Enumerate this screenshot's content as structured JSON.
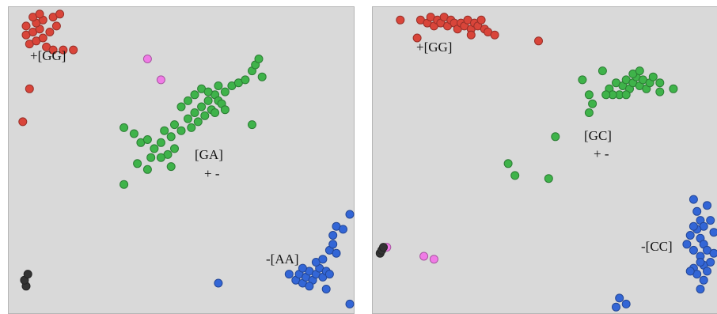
{
  "colors": {
    "GG": "#d9453a",
    "AA": "#3366d6",
    "CC": "#3366d6",
    "GA": "#3fb34a",
    "GC": "#3fb34a",
    "magenta": "#f07be6",
    "black": "#333333",
    "panel_background": "#d9d9d9"
  },
  "panels": [
    {
      "labels": {
        "GG": "+[GG]",
        "GA": "[GA]",
        "GA_sign": "+ -",
        "AA": "-[AA]"
      }
    },
    {
      "labels": {
        "GG": "+[GG]",
        "GC": "[GC]",
        "GC_sign": "+ -",
        "CC": "-[CC]"
      }
    }
  ],
  "chart_data": [
    {
      "type": "scatter",
      "xlim": [
        0,
        1
      ],
      "ylim": [
        0,
        1
      ],
      "grid": false,
      "series": [
        {
          "cluster": "GG",
          "color_key": "GG",
          "points": [
            [
              0.04,
              0.92
            ],
            [
              0.06,
              0.93
            ],
            [
              0.08,
              0.94
            ],
            [
              0.05,
              0.89
            ],
            [
              0.07,
              0.9
            ],
            [
              0.09,
              0.91
            ],
            [
              0.1,
              0.88
            ],
            [
              0.12,
              0.87
            ],
            [
              0.15,
              0.87
            ],
            [
              0.18,
              0.87
            ],
            [
              0.11,
              0.93
            ],
            [
              0.13,
              0.95
            ],
            [
              0.07,
              0.96
            ],
            [
              0.09,
              0.97
            ],
            [
              0.04,
              0.95
            ],
            [
              0.06,
              0.98
            ],
            [
              0.12,
              0.98
            ],
            [
              0.08,
              0.99
            ],
            [
              0.14,
              0.99
            ],
            [
              0.05,
              0.74
            ],
            [
              0.03,
              0.63
            ]
          ]
        },
        {
          "cluster": "GA",
          "color_key": "GA",
          "points": [
            [
              0.33,
              0.61
            ],
            [
              0.36,
              0.59
            ],
            [
              0.38,
              0.56
            ],
            [
              0.4,
              0.57
            ],
            [
              0.42,
              0.54
            ],
            [
              0.44,
              0.56
            ],
            [
              0.45,
              0.6
            ],
            [
              0.47,
              0.58
            ],
            [
              0.48,
              0.62
            ],
            [
              0.5,
              0.6
            ],
            [
              0.52,
              0.64
            ],
            [
              0.53,
              0.61
            ],
            [
              0.54,
              0.66
            ],
            [
              0.55,
              0.63
            ],
            [
              0.56,
              0.68
            ],
            [
              0.57,
              0.65
            ],
            [
              0.58,
              0.7
            ],
            [
              0.59,
              0.67
            ],
            [
              0.6,
              0.72
            ],
            [
              0.61,
              0.7
            ],
            [
              0.62,
              0.69
            ],
            [
              0.5,
              0.68
            ],
            [
              0.52,
              0.7
            ],
            [
              0.54,
              0.72
            ],
            [
              0.56,
              0.74
            ],
            [
              0.58,
              0.73
            ],
            [
              0.6,
              0.66
            ],
            [
              0.63,
              0.73
            ],
            [
              0.65,
              0.75
            ],
            [
              0.67,
              0.76
            ],
            [
              0.69,
              0.77
            ],
            [
              0.71,
              0.8
            ],
            [
              0.72,
              0.82
            ],
            [
              0.73,
              0.84
            ],
            [
              0.74,
              0.78
            ],
            [
              0.71,
              0.62
            ],
            [
              0.63,
              0.67
            ],
            [
              0.61,
              0.75
            ],
            [
              0.48,
              0.54
            ],
            [
              0.46,
              0.52
            ],
            [
              0.33,
              0.42
            ],
            [
              0.37,
              0.49
            ],
            [
              0.41,
              0.51
            ],
            [
              0.44,
              0.51
            ],
            [
              0.47,
              0.48
            ],
            [
              0.4,
              0.47
            ]
          ]
        },
        {
          "cluster": "AA",
          "color_key": "AA",
          "points": [
            [
              0.82,
              0.12
            ],
            [
              0.84,
              0.1
            ],
            [
              0.85,
              0.12
            ],
            [
              0.86,
              0.09
            ],
            [
              0.87,
              0.11
            ],
            [
              0.88,
              0.13
            ],
            [
              0.89,
              0.1
            ],
            [
              0.9,
              0.12
            ],
            [
              0.91,
              0.14
            ],
            [
              0.92,
              0.11
            ],
            [
              0.93,
              0.13
            ],
            [
              0.94,
              0.12
            ],
            [
              0.88,
              0.08
            ],
            [
              0.86,
              0.14
            ],
            [
              0.9,
              0.16
            ],
            [
              0.92,
              0.17
            ],
            [
              0.94,
              0.2
            ],
            [
              0.95,
              0.22
            ],
            [
              0.96,
              0.19
            ],
            [
              0.95,
              0.25
            ],
            [
              0.96,
              0.28
            ],
            [
              0.98,
              0.27
            ],
            [
              1.0,
              0.32
            ],
            [
              0.93,
              0.07
            ],
            [
              1.01,
              0.02
            ],
            [
              0.61,
              0.09
            ]
          ]
        },
        {
          "cluster": "magenta",
          "color_key": "magenta",
          "points": [
            [
              0.4,
              0.84
            ],
            [
              0.44,
              0.77
            ]
          ]
        },
        {
          "cluster": "black",
          "color_key": "black",
          "points": [
            [
              0.04,
              0.08
            ],
            [
              0.035,
              0.1
            ],
            [
              0.045,
              0.12
            ]
          ]
        }
      ]
    },
    {
      "type": "scatter",
      "xlim": [
        0,
        1
      ],
      "ylim": [
        0,
        1
      ],
      "grid": false,
      "series": [
        {
          "cluster": "GG",
          "color_key": "GG",
          "points": [
            [
              0.07,
              0.97
            ],
            [
              0.13,
              0.97
            ],
            [
              0.15,
              0.96
            ],
            [
              0.16,
              0.98
            ],
            [
              0.17,
              0.95
            ],
            [
              0.18,
              0.97
            ],
            [
              0.19,
              0.96
            ],
            [
              0.2,
              0.98
            ],
            [
              0.21,
              0.95
            ],
            [
              0.22,
              0.97
            ],
            [
              0.23,
              0.96
            ],
            [
              0.24,
              0.94
            ],
            [
              0.25,
              0.96
            ],
            [
              0.26,
              0.95
            ],
            [
              0.27,
              0.97
            ],
            [
              0.28,
              0.94
            ],
            [
              0.29,
              0.96
            ],
            [
              0.3,
              0.95
            ],
            [
              0.31,
              0.97
            ],
            [
              0.32,
              0.94
            ],
            [
              0.28,
              0.92
            ],
            [
              0.33,
              0.93
            ],
            [
              0.35,
              0.92
            ],
            [
              0.12,
              0.91
            ],
            [
              0.48,
              0.9
            ]
          ]
        },
        {
          "cluster": "GC",
          "color_key": "GC",
          "points": [
            [
              0.69,
              0.74
            ],
            [
              0.71,
              0.76
            ],
            [
              0.72,
              0.72
            ],
            [
              0.73,
              0.75
            ],
            [
              0.74,
              0.77
            ],
            [
              0.75,
              0.74
            ],
            [
              0.76,
              0.76
            ],
            [
              0.77,
              0.78
            ],
            [
              0.78,
              0.75
            ],
            [
              0.79,
              0.77
            ],
            [
              0.8,
              0.74
            ],
            [
              0.81,
              0.76
            ],
            [
              0.82,
              0.78
            ],
            [
              0.76,
              0.79
            ],
            [
              0.78,
              0.8
            ],
            [
              0.74,
              0.72
            ],
            [
              0.7,
              0.72
            ],
            [
              0.84,
              0.76
            ],
            [
              0.88,
              0.74
            ],
            [
              0.84,
              0.73
            ],
            [
              0.67,
              0.8
            ],
            [
              0.68,
              0.72
            ],
            [
              0.63,
              0.72
            ],
            [
              0.61,
              0.77
            ],
            [
              0.64,
              0.69
            ],
            [
              0.63,
              0.66
            ],
            [
              0.53,
              0.58
            ],
            [
              0.39,
              0.49
            ],
            [
              0.41,
              0.45
            ],
            [
              0.51,
              0.44
            ]
          ]
        },
        {
          "cluster": "CC",
          "color_key": "CC",
          "points": [
            [
              0.94,
              0.37
            ],
            [
              0.95,
              0.33
            ],
            [
              0.96,
              0.3
            ],
            [
              0.97,
              0.28
            ],
            [
              0.95,
              0.27
            ],
            [
              0.96,
              0.24
            ],
            [
              0.97,
              0.22
            ],
            [
              0.98,
              0.2
            ],
            [
              0.96,
              0.18
            ],
            [
              0.97,
              0.15
            ],
            [
              0.98,
              0.13
            ],
            [
              0.99,
              0.16
            ],
            [
              1.0,
              0.19
            ],
            [
              1.0,
              0.26
            ],
            [
              0.99,
              0.3
            ],
            [
              0.98,
              0.35
            ],
            [
              0.94,
              0.28
            ],
            [
              0.93,
              0.25
            ],
            [
              0.92,
              0.22
            ],
            [
              0.94,
              0.2
            ],
            [
              0.96,
              0.16
            ],
            [
              0.94,
              0.14
            ],
            [
              0.95,
              0.12
            ],
            [
              0.97,
              0.1
            ],
            [
              0.93,
              0.13
            ],
            [
              0.96,
              0.07
            ],
            [
              0.72,
              0.04
            ],
            [
              0.74,
              0.02
            ],
            [
              0.71,
              0.01
            ]
          ]
        },
        {
          "cluster": "magenta",
          "color_key": "magenta",
          "points": [
            [
              0.03,
              0.21
            ],
            [
              0.14,
              0.18
            ],
            [
              0.17,
              0.17
            ]
          ]
        },
        {
          "cluster": "black",
          "color_key": "black",
          "points": [
            [
              0.01,
              0.19
            ],
            [
              0.015,
              0.2
            ],
            [
              0.02,
              0.21
            ]
          ]
        }
      ]
    }
  ]
}
